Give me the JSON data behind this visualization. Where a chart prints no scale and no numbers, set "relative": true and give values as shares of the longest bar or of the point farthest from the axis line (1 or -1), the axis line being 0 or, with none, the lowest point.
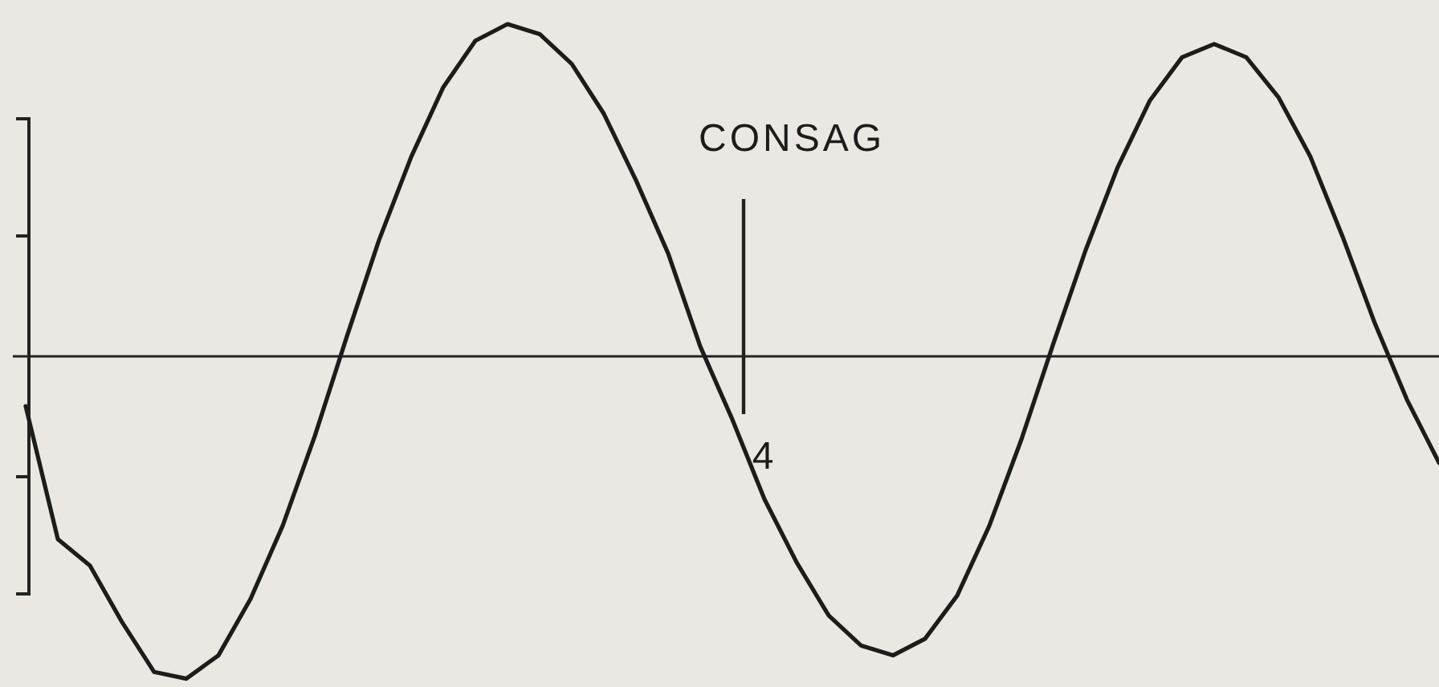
{
  "chart_data": {
    "type": "line",
    "relative": true,
    "line_style": "solid",
    "categories": [
      null,
      null,
      null,
      null,
      null,
      null,
      null,
      null,
      null,
      null,
      null,
      null,
      null,
      null,
      null,
      null,
      null,
      null,
      null,
      null,
      null,
      null,
      null,
      null,
      null,
      null,
      null,
      null,
      null,
      null,
      null,
      null,
      null,
      null,
      null,
      null,
      null,
      null,
      null,
      null,
      null,
      null,
      null,
      null,
      null
    ],
    "series": [
      {
        "color": "#1c1c1c",
        "values": [
          -0.15,
          -0.55,
          -0.63,
          -0.8,
          -0.95,
          -0.97,
          -0.9,
          -0.73,
          -0.51,
          -0.24,
          0.06,
          0.35,
          0.6,
          0.81,
          0.95,
          1.0,
          0.97,
          0.88,
          0.73,
          0.53,
          0.31,
          0.03,
          -0.19,
          -0.43,
          -0.62,
          -0.78,
          -0.87,
          -0.9,
          -0.85,
          -0.72,
          -0.51,
          -0.25,
          0.04,
          0.32,
          0.57,
          0.77,
          0.9,
          0.94,
          0.9,
          0.78,
          0.6,
          0.36,
          0.1,
          -0.13,
          -0.32
        ]
      }
    ],
    "annotations": [
      "CONSAG",
      "4"
    ]
  }
}
